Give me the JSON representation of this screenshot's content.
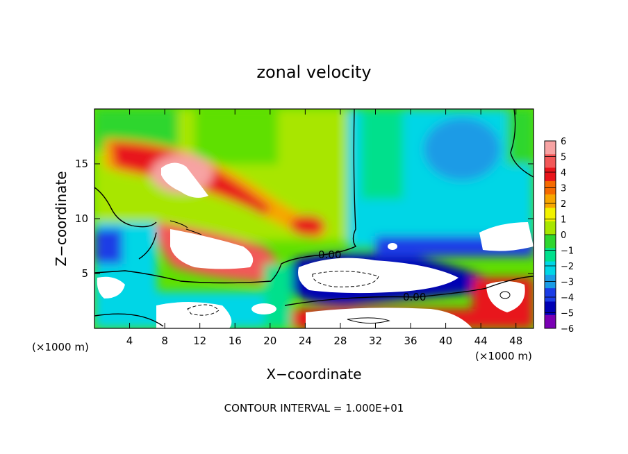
{
  "chart_data": {
    "type": "heatmap",
    "title": "zonal velocity",
    "xlabel": "X−coordinate",
    "ylabel": "Z−coordinate",
    "x_unit_label": "(×1000 m)",
    "x_unit_label_right": "(×1000 m)",
    "xlim": [
      0,
      50
    ],
    "ylim": [
      0,
      20
    ],
    "x_ticks": [
      4,
      8,
      12,
      16,
      20,
      24,
      28,
      32,
      36,
      40,
      44,
      48
    ],
    "y_ticks": [
      5,
      10,
      15
    ],
    "colorbar": {
      "levels": [
        6,
        5,
        4,
        3,
        2,
        1,
        0,
        -1,
        -2,
        -3,
        -4,
        -5,
        -6
      ],
      "labels": [
        "6",
        "5",
        "4",
        "3",
        "2",
        "1",
        "0",
        "−1",
        "−2",
        "−3",
        "−4",
        "−5",
        "−6"
      ],
      "colors": [
        "#f7a3a3",
        "#f25858",
        "#e8141a",
        "#f56a00",
        "#f7a600",
        "#f2f200",
        "#a8e600",
        "#2fd62f",
        "#00e08c",
        "#00d6e6",
        "#1a9be6",
        "#1a3ce6",
        "#0000b4",
        "#7a00b4"
      ]
    },
    "contour_labels": [
      "0.00",
      "0.00"
    ],
    "footer": "CONTOUR INTERVAL = 1.000E+01"
  }
}
